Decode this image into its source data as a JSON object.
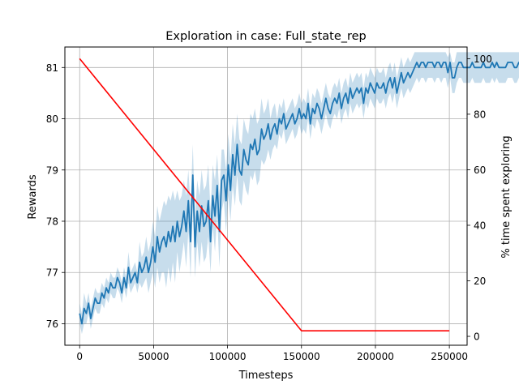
{
  "chart_data": {
    "type": "line",
    "title": "Exploration in case: Full_state_rep",
    "xlabel": "Timesteps",
    "ylabel": "Rewards",
    "y2label": "% time spent exploring",
    "xlim": [
      -10000,
      262000
    ],
    "ylim": [
      75.58,
      81.4
    ],
    "y2lim": [
      -3.2,
      104.2
    ],
    "x_ticks": [
      0,
      50000,
      100000,
      150000,
      200000,
      250000
    ],
    "x_tick_labels": [
      "0",
      "50000",
      "100000",
      "150000",
      "200000",
      "250000"
    ],
    "y_ticks": [
      76,
      77,
      78,
      79,
      80,
      81
    ],
    "y_tick_labels": [
      "76",
      "77",
      "78",
      "79",
      "80",
      "81"
    ],
    "y2_ticks": [
      0,
      20,
      40,
      60,
      80,
      100
    ],
    "y2_tick_labels": [
      "0",
      "20",
      "40",
      "60",
      "80",
      "100"
    ],
    "grid": true,
    "series": [
      {
        "axis": "left",
        "color": "#1f77b4",
        "band_color": "#1f77b4",
        "x_start": 0,
        "x_step": 1500,
        "values": [
          76.2,
          76.0,
          76.3,
          76.2,
          76.4,
          76.1,
          76.3,
          76.5,
          76.4,
          76.4,
          76.6,
          76.5,
          76.7,
          76.6,
          76.8,
          76.7,
          76.7,
          76.9,
          76.8,
          76.6,
          76.9,
          76.7,
          77.1,
          76.8,
          76.9,
          77.0,
          76.8,
          77.2,
          77.0,
          77.1,
          77.3,
          77.0,
          77.2,
          77.5,
          77.2,
          77.7,
          77.4,
          77.6,
          77.7,
          77.5,
          77.8,
          77.6,
          77.9,
          77.6,
          78.0,
          77.7,
          77.9,
          78.2,
          77.8,
          78.4,
          77.6,
          78.9,
          77.5,
          78.2,
          77.8,
          78.3,
          77.9,
          78.0,
          78.4,
          77.6,
          78.5,
          78.1,
          78.7,
          77.8,
          78.8,
          78.9,
          78.4,
          79.1,
          78.6,
          79.3,
          78.9,
          79.5,
          79.0,
          78.9,
          79.4,
          79.2,
          79.1,
          79.5,
          79.4,
          79.6,
          79.3,
          79.4,
          79.8,
          79.6,
          79.7,
          79.9,
          79.6,
          79.8,
          79.9,
          79.7,
          80.0,
          79.9,
          80.1,
          79.8,
          79.9,
          80.0,
          80.1,
          79.9,
          80.0,
          80.2,
          80.0,
          80.1,
          80.0,
          80.3,
          79.9,
          80.2,
          80.1,
          80.3,
          80.2,
          80.0,
          80.2,
          80.4,
          80.2,
          80.1,
          80.3,
          80.4,
          80.3,
          80.5,
          80.2,
          80.4,
          80.5,
          80.3,
          80.6,
          80.4,
          80.5,
          80.6,
          80.5,
          80.6,
          80.3,
          80.6,
          80.5,
          80.7,
          80.6,
          80.5,
          80.7,
          80.6,
          80.6,
          80.7,
          80.5,
          80.7,
          80.8,
          80.6,
          80.8,
          80.5,
          80.7,
          80.9,
          80.7,
          80.8,
          80.9,
          80.8,
          80.9,
          81.0,
          81.1,
          81.0,
          81.1,
          81.1,
          81.0,
          81.1,
          81.1,
          81.1,
          81.0,
          81.1,
          81.1,
          81.0,
          81.1,
          81.1,
          80.9,
          81.1,
          80.8,
          80.8,
          81.0,
          81.1,
          81.1,
          81.0,
          81.0,
          81.0,
          81.0,
          81.1,
          81.0,
          81.0,
          81.0,
          81.0,
          81.1,
          81.0,
          81.0,
          81.0,
          81.1,
          81.0,
          81.1,
          81.0,
          81.0,
          81.0,
          81.0,
          81.1,
          81.1,
          81.1,
          81.0,
          81.0,
          81.1,
          81.1,
          81.0,
          81.1,
          81.1,
          81.1,
          81.0,
          81.0,
          81.1,
          81.1,
          81.0,
          81.1,
          81.1,
          81.0,
          81.0,
          81.1,
          81.0,
          81.0,
          81.1,
          81.1,
          81.1,
          81.0,
          81.0,
          81.1,
          81.0,
          81.0,
          81.1,
          81.1,
          81.0,
          81.1,
          81.0,
          81.1,
          81.1,
          81.0,
          81.1,
          81.1,
          81.1,
          81.0,
          81.1,
          81.1,
          81.0,
          81.0,
          81.1,
          81.1,
          81.1,
          81.0,
          81.1,
          81.1,
          81.0,
          81.1,
          81.0,
          81.1,
          81.1,
          81.0,
          81.1,
          81.1,
          81.0,
          81.0,
          81.1,
          81.1,
          81.0,
          81.1,
          81.1,
          81.0,
          81.1,
          81.0,
          81.1,
          81.0,
          81.1
        ],
        "lower": [
          76.0,
          75.8,
          76.0,
          76.0,
          76.2,
          75.9,
          76.1,
          76.3,
          76.2,
          76.2,
          76.4,
          76.3,
          76.5,
          76.4,
          76.6,
          76.5,
          76.5,
          76.7,
          76.6,
          76.4,
          76.7,
          76.5,
          76.8,
          76.6,
          76.7,
          76.8,
          76.6,
          76.8,
          76.7,
          76.8,
          76.9,
          76.6,
          76.8,
          77.0,
          76.7,
          77.1,
          76.8,
          77.0,
          77.0,
          76.7,
          77.1,
          76.8,
          77.2,
          76.8,
          77.4,
          77.0,
          77.3,
          77.6,
          77.1,
          77.8,
          76.9,
          78.3,
          76.9,
          77.6,
          77.1,
          77.6,
          77.2,
          77.3,
          77.7,
          77.0,
          77.9,
          77.4,
          78.1,
          77.1,
          78.2,
          78.4,
          77.8,
          78.5,
          78.0,
          78.7,
          78.3,
          78.9,
          78.4,
          78.3,
          78.8,
          78.6,
          78.5,
          78.9,
          78.8,
          79.0,
          78.7,
          78.8,
          79.2,
          79.1,
          79.2,
          79.4,
          79.2,
          79.4,
          79.5,
          79.4,
          79.7,
          79.6,
          79.8,
          79.5,
          79.6,
          79.7,
          79.8,
          79.6,
          79.7,
          79.9,
          79.7,
          79.8,
          79.7,
          80.0,
          79.6,
          79.9,
          79.8,
          80.0,
          79.9,
          79.7,
          79.9,
          80.1,
          79.9,
          79.8,
          80.0,
          80.1,
          80.0,
          80.2,
          79.9,
          80.1,
          80.2,
          80.0,
          80.3,
          80.1,
          80.2,
          80.3,
          80.2,
          80.3,
          80.0,
          80.3,
          80.2,
          80.4,
          80.3,
          80.2,
          80.4,
          80.3,
          80.3,
          80.4,
          80.2,
          80.4,
          80.5,
          80.3,
          80.5,
          80.2,
          80.4,
          80.6,
          80.4,
          80.5,
          80.6,
          80.5,
          80.6,
          80.7,
          80.8,
          80.7,
          80.8,
          80.8,
          80.7,
          80.8,
          80.8,
          80.8,
          80.7,
          80.8,
          80.8,
          80.7,
          80.8,
          80.8,
          80.6,
          80.8,
          80.5,
          80.5,
          80.7,
          80.8,
          80.8,
          80.7,
          80.7,
          80.7,
          80.7,
          80.8,
          80.7,
          80.7,
          80.7,
          80.7,
          80.8,
          80.7,
          80.7,
          80.7,
          80.8,
          80.7,
          80.8,
          80.7,
          80.7,
          80.7,
          80.7,
          80.8,
          80.8,
          80.8,
          80.7,
          80.7,
          80.8,
          80.8,
          80.7,
          80.8,
          80.8,
          80.8,
          80.7,
          80.7,
          80.8,
          80.8,
          80.7,
          80.8,
          80.8,
          80.7,
          80.7,
          80.8,
          80.7,
          80.7,
          80.8,
          80.8,
          80.8,
          80.7,
          80.7,
          80.8,
          80.7,
          80.7,
          80.8,
          80.8,
          80.7,
          80.8,
          80.7,
          80.8,
          80.8,
          80.7,
          80.8,
          80.8,
          80.8,
          80.7,
          80.8,
          80.8,
          80.7,
          80.7,
          80.8,
          80.8,
          80.8,
          80.7,
          80.8,
          80.8,
          80.7,
          80.8,
          80.7,
          80.8,
          80.8,
          80.7,
          80.8,
          80.8,
          80.7,
          80.7,
          80.8,
          80.8,
          80.7,
          80.8,
          80.8,
          80.7,
          80.8,
          80.7,
          80.8,
          80.7,
          80.8
        ],
        "upper": [
          76.4,
          76.2,
          76.6,
          76.4,
          76.6,
          76.3,
          76.5,
          76.7,
          76.6,
          76.6,
          76.8,
          76.7,
          76.9,
          76.8,
          77.0,
          76.9,
          76.9,
          77.1,
          77.0,
          76.8,
          77.1,
          76.9,
          77.4,
          77.0,
          77.1,
          77.2,
          77.0,
          77.6,
          77.3,
          77.4,
          77.7,
          77.4,
          77.6,
          78.0,
          77.7,
          78.3,
          78.0,
          78.2,
          78.4,
          78.3,
          78.5,
          78.4,
          78.6,
          78.4,
          78.6,
          78.4,
          78.5,
          78.8,
          78.5,
          79.0,
          78.3,
          79.5,
          78.1,
          78.8,
          78.5,
          79.0,
          78.6,
          78.7,
          79.1,
          78.2,
          79.1,
          78.8,
          79.3,
          78.5,
          79.4,
          79.4,
          79.0,
          79.7,
          79.2,
          79.9,
          79.5,
          80.1,
          79.6,
          79.5,
          80.0,
          79.8,
          79.7,
          80.1,
          80.0,
          80.2,
          79.9,
          80.0,
          80.4,
          80.1,
          80.2,
          80.4,
          80.0,
          80.2,
          80.3,
          80.0,
          80.3,
          80.2,
          80.4,
          80.1,
          80.2,
          80.3,
          80.4,
          80.2,
          80.3,
          80.5,
          80.3,
          80.4,
          80.3,
          80.6,
          80.2,
          80.5,
          80.4,
          80.6,
          80.5,
          80.3,
          80.5,
          80.7,
          80.5,
          80.4,
          80.6,
          80.7,
          80.6,
          80.8,
          80.5,
          80.7,
          80.8,
          80.6,
          80.9,
          80.7,
          80.8,
          80.9,
          80.8,
          80.9,
          80.6,
          80.9,
          80.8,
          81.0,
          80.9,
          80.8,
          81.0,
          80.9,
          80.9,
          81.0,
          80.8,
          81.0,
          81.1,
          80.9,
          81.1,
          80.8,
          81.0,
          81.2,
          81.0,
          81.1,
          81.2,
          81.1,
          81.2,
          81.3,
          81.3,
          81.3,
          81.3,
          81.3,
          81.3,
          81.3,
          81.3,
          81.3,
          81.3,
          81.3,
          81.3,
          81.3,
          81.3,
          81.3,
          81.2,
          81.3,
          81.1,
          81.1,
          81.3,
          81.3,
          81.3,
          81.3,
          81.3,
          81.3,
          81.3,
          81.3,
          81.3,
          81.3,
          81.3,
          81.3,
          81.3,
          81.3,
          81.3,
          81.3,
          81.3,
          81.3,
          81.3,
          81.3,
          81.3,
          81.3,
          81.3,
          81.3,
          81.3,
          81.3,
          81.3,
          81.3,
          81.3,
          81.3,
          81.3,
          81.3,
          81.3,
          81.3,
          81.3,
          81.3,
          81.3,
          81.3,
          81.3,
          81.3,
          81.3,
          81.3,
          81.3,
          81.3,
          81.3,
          81.3,
          81.3,
          81.3,
          81.3,
          81.3,
          81.3,
          81.3,
          81.3,
          81.3,
          81.3,
          81.3,
          81.3,
          81.3,
          81.3,
          81.3,
          81.3,
          81.3,
          81.3,
          81.3,
          81.3,
          81.3,
          81.3,
          81.3,
          81.3,
          81.3,
          81.3,
          81.3,
          81.3,
          81.3,
          81.3,
          81.3,
          81.3,
          81.3,
          81.3,
          81.3,
          81.3,
          81.3,
          81.3,
          81.3,
          81.3,
          81.3,
          81.3,
          81.3,
          81.3,
          81.3,
          81.3,
          81.3,
          81.3,
          81.3,
          81.3,
          81.3,
          81.3
        ]
      },
      {
        "axis": "right",
        "color": "#ff0000",
        "x": [
          0,
          150000,
          250000
        ],
        "values": [
          100,
          2,
          2
        ]
      }
    ]
  }
}
